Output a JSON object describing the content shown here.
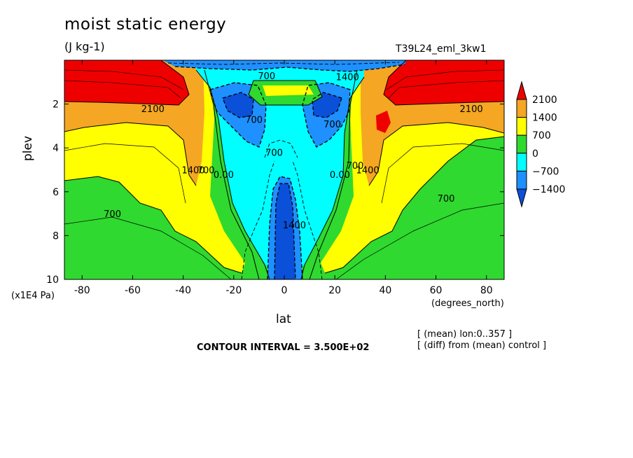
{
  "header": {
    "title": "moist static energy",
    "units": "(J kg-1)",
    "run_name": "T39L24_eml_3kw1"
  },
  "footer": {
    "contour_interval": "CONTOUR INTERVAL = 3.500E+02",
    "mean_note": "[ (mean) lon:0..357 ]",
    "diff_note": "[ (diff) from (mean) control ]"
  },
  "chart_data": {
    "type": "heatmap",
    "title": "moist static energy",
    "subtitle": "(J kg-1)",
    "xlabel": "lat",
    "x_unit_label": "(degrees_north)",
    "ylabel": "plev",
    "y_unit_label": "(x1E4 Pa)",
    "xlim": [
      -87,
      87
    ],
    "ylim": [
      0,
      10
    ],
    "y_inverted": true,
    "x_ticks": [
      -80,
      -60,
      -40,
      -20,
      0,
      20,
      40,
      60,
      80
    ],
    "y_ticks": [
      2,
      4,
      6,
      8,
      10
    ],
    "contour_interval": 350,
    "colorbar": {
      "levels": [
        2100,
        1400,
        700,
        0,
        -700,
        -1400
      ],
      "bins": [
        {
          "range": "> 2100",
          "color": "#ee0000"
        },
        {
          "range": "1400 to 2100",
          "color": "#f5a623"
        },
        {
          "range": "700 to 1400",
          "color": "#ffff00"
        },
        {
          "range": "0 to 700",
          "color": "#2fd92f"
        },
        {
          "range": "-700 to 0",
          "color": "#00ffff"
        },
        {
          "range": "-1400 to -700",
          "color": "#1e90ff"
        },
        {
          "range": "< -1400",
          "color": "#0a50d8"
        }
      ]
    },
    "contour_labels": [
      {
        "text": "2100",
        "lat": -52,
        "plev": 2.2
      },
      {
        "text": "2100",
        "lat": 74,
        "plev": 2.2
      },
      {
        "text": "1400",
        "lat": -36,
        "plev": 5.0
      },
      {
        "text": "700",
        "lat": -31,
        "plev": 5.0
      },
      {
        "text": "0.00",
        "lat": -24,
        "plev": 5.2
      },
      {
        "text": "700",
        "lat": -12,
        "plev": 2.7
      },
      {
        "text": "700",
        "lat": -4,
        "plev": 4.2
      },
      {
        "text": "1400",
        "lat": 4,
        "plev": 7.5
      },
      {
        "text": "700",
        "lat": 19,
        "plev": 2.9
      },
      {
        "text": "0.00",
        "lat": 22,
        "plev": 5.2
      },
      {
        "text": "700",
        "lat": 28,
        "plev": 4.8
      },
      {
        "text": "1400",
        "lat": 33,
        "plev": 5.0
      },
      {
        "text": "700",
        "lat": 64,
        "plev": 6.3
      },
      {
        "text": "700",
        "lat": -68,
        "plev": 7.0
      },
      {
        "text": "700",
        "lat": -7,
        "plev": 0.7
      },
      {
        "text": "1400",
        "lat": 25,
        "plev": 0.75
      }
    ]
  }
}
